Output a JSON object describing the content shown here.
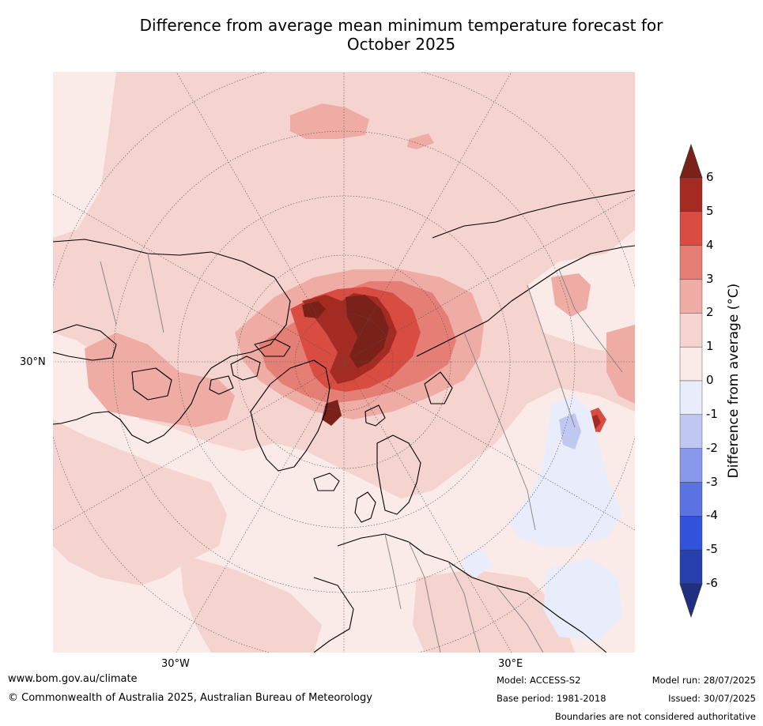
{
  "title": {
    "line1": "Difference from average mean minimum temperature forecast for",
    "line2": "October 2025"
  },
  "map": {
    "projection": "north-polar-stereographic",
    "lat_labels": [
      "30°N"
    ],
    "lon_labels": [
      "30°W",
      "30°E"
    ],
    "coastline_color": "#000000",
    "border_color": "#808080"
  },
  "colorbar": {
    "label": "Difference from average (°C)",
    "ticks": [
      "6",
      "5",
      "4",
      "3",
      "2",
      "1",
      "0",
      "-1",
      "-2",
      "-3",
      "-4",
      "-5",
      "-6"
    ],
    "over_color": "#7a2219",
    "under_color": "#1f2f82",
    "bins": [
      {
        "range": "5 to 6",
        "color": "#a52a22"
      },
      {
        "range": "4 to 5",
        "color": "#d94c41"
      },
      {
        "range": "3 to 4",
        "color": "#e57f76"
      },
      {
        "range": "2 to 3",
        "color": "#eeaca5"
      },
      {
        "range": "1 to 2",
        "color": "#f5d3cf"
      },
      {
        "range": "0 to 1",
        "color": "#fbebe8"
      },
      {
        "range": "-1 to 0",
        "color": "#e8ecfb"
      },
      {
        "range": "-2 to -1",
        "color": "#c0c8f2"
      },
      {
        "range": "-3 to -2",
        "color": "#8898ea"
      },
      {
        "range": "-4 to -3",
        "color": "#5b72e3"
      },
      {
        "range": "-5 to -4",
        "color": "#3352dc"
      },
      {
        "range": "-6 to -5",
        "color": "#283fae"
      }
    ]
  },
  "footer": {
    "website": "www.bom.gov.au/climate",
    "copyright": "© Commonwealth of Australia 2025, Australian Bureau of Meteorology",
    "model": "Model: ACCESS-S2",
    "base_period": "Base period: 1981-2018",
    "model_run": "Model run: 28/07/2025",
    "issued": "Issued: 30/07/2025",
    "disclaimer": "Boundaries are not considered authoritative"
  }
}
